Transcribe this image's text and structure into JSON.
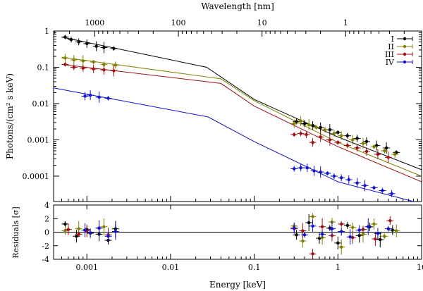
{
  "chart_data": {
    "type": "scatter",
    "top_panel": {
      "ylabel": "Photons/(cm² s keV)",
      "yscale": "log",
      "ylim": [
        2e-05,
        1
      ],
      "yticks": [
        {
          "value": 1,
          "label": "1"
        },
        {
          "value": 0.1,
          "label": "0.1"
        },
        {
          "value": 0.01,
          "label": "0.01"
        },
        {
          "value": 0.001,
          "label": "0.001"
        },
        {
          "value": 0.0001,
          "label": "0.0001"
        }
      ]
    },
    "bottom_panel": {
      "ylabel": "Residuals [σ]",
      "ylim": [
        -4,
        4
      ],
      "yticks": [
        {
          "value": 4,
          "label": "4"
        },
        {
          "value": 2,
          "label": "2"
        },
        {
          "value": 0,
          "label": "0"
        },
        {
          "value": -2,
          "label": "-2"
        },
        {
          "value": -4,
          "label": "-4"
        }
      ]
    },
    "xlabel": "Energy [keV]",
    "xscale": "log",
    "xlim": [
      0.0004,
      10
    ],
    "xticks": [
      {
        "value": 0.001,
        "label": "0.001"
      },
      {
        "value": 0.01,
        "label": "0.01"
      },
      {
        "value": 0.1,
        "label": "0.1"
      },
      {
        "value": 1,
        "label": "1"
      },
      {
        "value": 10,
        "label": "10"
      }
    ],
    "top_axis": {
      "label": "Wavelength [nm]",
      "ticks": [
        {
          "value": 1000,
          "label": "1000"
        },
        {
          "value": 100,
          "label": "100"
        },
        {
          "value": 10,
          "label": "10"
        },
        {
          "value": 1,
          "label": "1"
        }
      ]
    },
    "legend_position": "top-right",
    "series": [
      {
        "name": "I",
        "color": "#000000",
        "model": [
          [
            0.0005,
            0.68
          ],
          [
            0.027,
            0.1
          ],
          [
            0.1,
            0.013
          ],
          [
            1,
            0.0012
          ],
          [
            10,
            0.00015
          ]
        ],
        "points": [
          [
            0.00055,
            0.68
          ],
          [
            0.00065,
            0.58
          ],
          [
            0.0008,
            0.5
          ],
          [
            0.001,
            0.45
          ],
          [
            0.0013,
            0.38
          ],
          [
            0.0016,
            0.35
          ],
          [
            0.0021,
            0.33
          ],
          [
            0.32,
            0.0032
          ],
          [
            0.4,
            0.0028
          ],
          [
            0.5,
            0.0025
          ],
          [
            0.62,
            0.0022
          ],
          [
            0.8,
            0.0019
          ],
          [
            1.0,
            0.0016
          ],
          [
            1.3,
            0.0013
          ],
          [
            1.7,
            0.0011
          ],
          [
            2.2,
            0.0009
          ],
          [
            2.9,
            0.0007
          ],
          [
            3.8,
            0.0006
          ],
          [
            5.0,
            0.00045
          ]
        ],
        "residuals": [
          [
            0.00055,
            1.2
          ],
          [
            0.00075,
            -0.6
          ],
          [
            0.001,
            0.4
          ],
          [
            0.0014,
            -0.3
          ],
          [
            0.0018,
            -1.2
          ],
          [
            0.0022,
            0.5
          ],
          [
            0.32,
            -0.4
          ],
          [
            0.45,
            1.4
          ],
          [
            0.6,
            -0.9
          ],
          [
            0.8,
            0.6
          ],
          [
            1.0,
            -1.6
          ],
          [
            1.3,
            1.0
          ],
          [
            1.8,
            -0.5
          ],
          [
            2.4,
            0.8
          ],
          [
            3.2,
            -1.1
          ],
          [
            4.5,
            0.3
          ]
        ]
      },
      {
        "name": "II",
        "color": "#808000",
        "model": [
          [
            0.0005,
            0.19
          ],
          [
            0.04,
            0.048
          ],
          [
            0.1,
            0.012
          ],
          [
            1,
            0.00085
          ],
          [
            10,
            0.0001
          ]
        ],
        "points": [
          [
            0.00055,
            0.18
          ],
          [
            0.0007,
            0.16
          ],
          [
            0.0009,
            0.15
          ],
          [
            0.0012,
            0.14
          ],
          [
            0.0016,
            0.12
          ],
          [
            0.0022,
            0.115
          ],
          [
            0.3,
            0.0028
          ],
          [
            0.36,
            0.0033
          ],
          [
            0.45,
            0.0026
          ],
          [
            0.55,
            0.0022
          ],
          [
            0.7,
            0.0019
          ],
          [
            0.9,
            0.0015
          ],
          [
            1.1,
            0.0013
          ],
          [
            1.5,
            0.001
          ],
          [
            2.0,
            0.0008
          ],
          [
            2.7,
            0.00065
          ],
          [
            3.6,
            0.0005
          ],
          [
            4.8,
            0.0004
          ]
        ],
        "residuals": [
          [
            0.00055,
            0.2
          ],
          [
            0.0008,
            0.5
          ],
          [
            0.0011,
            -0.2
          ],
          [
            0.0016,
            0.8
          ],
          [
            0.0022,
            0.1
          ],
          [
            0.3,
            0.9
          ],
          [
            0.38,
            -1.3
          ],
          [
            0.5,
            2.3
          ],
          [
            0.65,
            -0.8
          ],
          [
            0.85,
            1.5
          ],
          [
            1.1,
            -2.2
          ],
          [
            1.5,
            0.7
          ],
          [
            2.0,
            -0.3
          ],
          [
            2.7,
            1.2
          ],
          [
            3.6,
            -0.6
          ],
          [
            5.0,
            0.2
          ]
        ]
      },
      {
        "name": "III",
        "color": "#a01010",
        "model": [
          [
            0.0005,
            0.12
          ],
          [
            0.04,
            0.036
          ],
          [
            0.1,
            0.0085
          ],
          [
            1,
            0.00065
          ],
          [
            10,
            7e-05
          ]
        ],
        "points": [
          [
            0.00055,
            0.12
          ],
          [
            0.0007,
            0.1
          ],
          [
            0.0009,
            0.095
          ],
          [
            0.0012,
            0.09
          ],
          [
            0.0016,
            0.085
          ],
          [
            0.0021,
            0.08
          ],
          [
            0.3,
            0.0014
          ],
          [
            0.36,
            0.0015
          ],
          [
            0.42,
            0.0014
          ],
          [
            0.5,
            0.00085
          ],
          [
            0.62,
            0.0012
          ],
          [
            0.8,
            0.001
          ],
          [
            1.0,
            0.00085
          ],
          [
            1.3,
            0.0007
          ],
          [
            1.7,
            0.0006
          ],
          [
            2.2,
            0.00048
          ],
          [
            3.0,
            0.0004
          ],
          [
            4.0,
            0.00033
          ]
        ],
        "residuals": [
          [
            0.0006,
            0.4
          ],
          [
            0.0008,
            -0.3
          ],
          [
            0.001,
            0.2
          ],
          [
            0.0014,
            0.6
          ],
          [
            0.0018,
            -0.4
          ],
          [
            0.3,
            0.5
          ],
          [
            0.38,
            0.2
          ],
          [
            0.5,
            -3.2
          ],
          [
            0.65,
            0.8
          ],
          [
            0.85,
            -0.5
          ],
          [
            1.1,
            1.2
          ],
          [
            1.5,
            -0.8
          ],
          [
            2.0,
            0.4
          ],
          [
            2.8,
            -1.0
          ],
          [
            4.2,
            1.7
          ]
        ]
      },
      {
        "name": "IV",
        "color": "#1010d0",
        "model": [
          [
            0.0004,
            0.027
          ],
          [
            0.028,
            0.0043
          ],
          [
            0.1,
            0.0009
          ],
          [
            1,
            7e-05
          ],
          [
            8.0,
            2e-05
          ]
        ],
        "points": [
          [
            0.00095,
            0.016
          ],
          [
            0.0011,
            0.017
          ],
          [
            0.0014,
            0.015
          ],
          [
            0.0018,
            0.014
          ],
          [
            0.3,
            0.00016
          ],
          [
            0.36,
            0.00017
          ],
          [
            0.43,
            0.00017
          ],
          [
            0.52,
            0.00014
          ],
          [
            0.62,
            0.00013
          ],
          [
            0.75,
            0.00012
          ],
          [
            0.9,
            0.0001
          ],
          [
            1.1,
            9e-05
          ],
          [
            1.35,
            8e-05
          ],
          [
            1.7,
            6.5e-05
          ],
          [
            2.1,
            5.5e-05
          ],
          [
            2.7,
            4.8e-05
          ],
          [
            3.4,
            4e-05
          ],
          [
            4.4,
            3.3e-05
          ]
        ],
        "residuals": [
          [
            0.00095,
            0.3
          ],
          [
            0.0011,
            -0.1
          ],
          [
            0.0014,
            0.6
          ],
          [
            0.0018,
            -0.6
          ],
          [
            0.0022,
            0.1
          ],
          [
            0.3,
            0.6
          ],
          [
            0.4,
            -0.4
          ],
          [
            0.5,
            0.9
          ],
          [
            0.65,
            -0.3
          ],
          [
            0.85,
            0.5
          ],
          [
            1.1,
            0.1
          ],
          [
            1.4,
            -0.7
          ],
          [
            1.8,
            0.3
          ],
          [
            2.3,
            0.8
          ],
          [
            3.0,
            -0.2
          ],
          [
            4.0,
            0.5
          ]
        ]
      }
    ]
  }
}
